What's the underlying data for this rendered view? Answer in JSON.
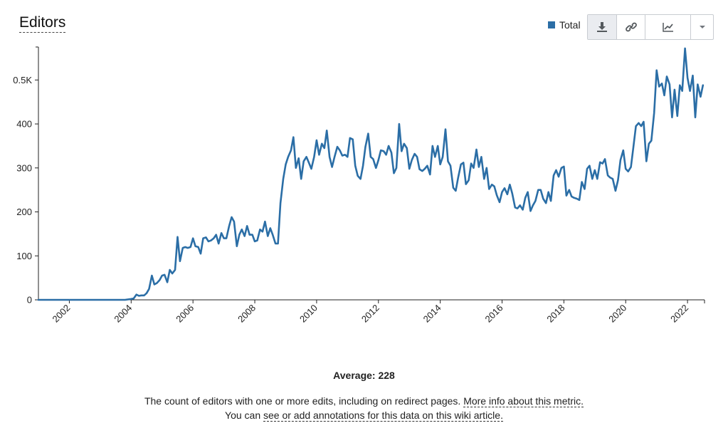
{
  "header": {
    "title": "Editors"
  },
  "legend": {
    "label": "Total",
    "color": "#2b6ea6"
  },
  "toolbar": {
    "download_icon": "download-icon",
    "link_icon": "link-icon",
    "chart_icon": "line-chart-icon",
    "more_icon": "chevron-down-icon"
  },
  "chart_data": {
    "type": "line",
    "title": "",
    "xlabel": "",
    "ylabel": "",
    "ylim": [
      0,
      575
    ],
    "x_range": [
      2001.0,
      2022.55
    ],
    "y_tick_labels": [
      {
        "value": 0,
        "label": "0"
      },
      {
        "value": 100,
        "label": "100"
      },
      {
        "value": 200,
        "label": "200"
      },
      {
        "value": 300,
        "label": "300"
      },
      {
        "value": 400,
        "label": "400"
      },
      {
        "value": 500,
        "label": "0.5K"
      }
    ],
    "x_tick_labels": [
      "2002",
      "2004",
      "2006",
      "2008",
      "2010",
      "2012",
      "2014",
      "2016",
      "2018",
      "2020",
      "2022"
    ],
    "grid": false,
    "legend_position": "top-right",
    "series": [
      {
        "name": "Total",
        "color": "#2b6ea6",
        "points": [
          [
            2001.0,
            0
          ],
          [
            2002.0,
            0
          ],
          [
            2003.0,
            0
          ],
          [
            2003.8,
            0
          ],
          [
            2004.0,
            2
          ],
          [
            2004.08,
            3
          ],
          [
            2004.17,
            12
          ],
          [
            2004.25,
            9
          ],
          [
            2004.33,
            10
          ],
          [
            2004.42,
            10
          ],
          [
            2004.5,
            15
          ],
          [
            2004.58,
            25
          ],
          [
            2004.67,
            55
          ],
          [
            2004.75,
            35
          ],
          [
            2004.83,
            38
          ],
          [
            2004.92,
            45
          ],
          [
            2005.0,
            55
          ],
          [
            2005.08,
            57
          ],
          [
            2005.17,
            40
          ],
          [
            2005.25,
            68
          ],
          [
            2005.33,
            60
          ],
          [
            2005.42,
            68
          ],
          [
            2005.5,
            143
          ],
          [
            2005.58,
            88
          ],
          [
            2005.67,
            118
          ],
          [
            2005.75,
            120
          ],
          [
            2005.83,
            118
          ],
          [
            2005.92,
            120
          ],
          [
            2006.0,
            140
          ],
          [
            2006.08,
            122
          ],
          [
            2006.17,
            120
          ],
          [
            2006.25,
            105
          ],
          [
            2006.33,
            140
          ],
          [
            2006.42,
            142
          ],
          [
            2006.5,
            133
          ],
          [
            2006.58,
            135
          ],
          [
            2006.67,
            140
          ],
          [
            2006.75,
            148
          ],
          [
            2006.83,
            128
          ],
          [
            2006.92,
            152
          ],
          [
            2007.0,
            140
          ],
          [
            2007.08,
            140
          ],
          [
            2007.17,
            168
          ],
          [
            2007.25,
            188
          ],
          [
            2007.33,
            178
          ],
          [
            2007.42,
            122
          ],
          [
            2007.5,
            148
          ],
          [
            2007.58,
            160
          ],
          [
            2007.67,
            145
          ],
          [
            2007.75,
            168
          ],
          [
            2007.83,
            148
          ],
          [
            2007.92,
            148
          ],
          [
            2008.0,
            133
          ],
          [
            2008.08,
            135
          ],
          [
            2008.17,
            160
          ],
          [
            2008.25,
            155
          ],
          [
            2008.33,
            178
          ],
          [
            2008.42,
            145
          ],
          [
            2008.5,
            163
          ],
          [
            2008.58,
            148
          ],
          [
            2008.67,
            128
          ],
          [
            2008.75,
            128
          ],
          [
            2008.83,
            220
          ],
          [
            2008.92,
            275
          ],
          [
            2009.0,
            308
          ],
          [
            2009.08,
            325
          ],
          [
            2009.17,
            340
          ],
          [
            2009.25,
            370
          ],
          [
            2009.33,
            300
          ],
          [
            2009.42,
            322
          ],
          [
            2009.5,
            275
          ],
          [
            2009.58,
            315
          ],
          [
            2009.67,
            325
          ],
          [
            2009.75,
            312
          ],
          [
            2009.83,
            298
          ],
          [
            2009.92,
            325
          ],
          [
            2010.0,
            363
          ],
          [
            2010.08,
            330
          ],
          [
            2010.17,
            355
          ],
          [
            2010.25,
            345
          ],
          [
            2010.33,
            385
          ],
          [
            2010.42,
            325
          ],
          [
            2010.5,
            302
          ],
          [
            2010.58,
            325
          ],
          [
            2010.67,
            348
          ],
          [
            2010.75,
            340
          ],
          [
            2010.83,
            328
          ],
          [
            2010.92,
            330
          ],
          [
            2011.0,
            325
          ],
          [
            2011.08,
            368
          ],
          [
            2011.17,
            365
          ],
          [
            2011.25,
            305
          ],
          [
            2011.33,
            282
          ],
          [
            2011.42,
            275
          ],
          [
            2011.5,
            305
          ],
          [
            2011.58,
            348
          ],
          [
            2011.67,
            378
          ],
          [
            2011.75,
            325
          ],
          [
            2011.83,
            320
          ],
          [
            2011.92,
            300
          ],
          [
            2012.0,
            318
          ],
          [
            2012.08,
            340
          ],
          [
            2012.17,
            338
          ],
          [
            2012.25,
            330
          ],
          [
            2012.33,
            350
          ],
          [
            2012.42,
            335
          ],
          [
            2012.5,
            288
          ],
          [
            2012.58,
            300
          ],
          [
            2012.67,
            400
          ],
          [
            2012.75,
            338
          ],
          [
            2012.83,
            355
          ],
          [
            2012.92,
            345
          ],
          [
            2013.0,
            298
          ],
          [
            2013.08,
            318
          ],
          [
            2013.17,
            332
          ],
          [
            2013.25,
            325
          ],
          [
            2013.33,
            297
          ],
          [
            2013.42,
            293
          ],
          [
            2013.5,
            298
          ],
          [
            2013.58,
            305
          ],
          [
            2013.67,
            285
          ],
          [
            2013.75,
            350
          ],
          [
            2013.83,
            325
          ],
          [
            2013.92,
            350
          ],
          [
            2014.0,
            308
          ],
          [
            2014.08,
            325
          ],
          [
            2014.17,
            388
          ],
          [
            2014.25,
            315
          ],
          [
            2014.33,
            305
          ],
          [
            2014.42,
            255
          ],
          [
            2014.5,
            248
          ],
          [
            2014.58,
            278
          ],
          [
            2014.67,
            308
          ],
          [
            2014.75,
            312
          ],
          [
            2014.83,
            263
          ],
          [
            2014.92,
            272
          ],
          [
            2015.0,
            310
          ],
          [
            2015.08,
            300
          ],
          [
            2015.17,
            342
          ],
          [
            2015.25,
            302
          ],
          [
            2015.33,
            325
          ],
          [
            2015.42,
            275
          ],
          [
            2015.5,
            300
          ],
          [
            2015.58,
            252
          ],
          [
            2015.67,
            262
          ],
          [
            2015.75,
            258
          ],
          [
            2015.83,
            238
          ],
          [
            2015.92,
            222
          ],
          [
            2016.0,
            245
          ],
          [
            2016.08,
            254
          ],
          [
            2016.17,
            240
          ],
          [
            2016.25,
            262
          ],
          [
            2016.33,
            242
          ],
          [
            2016.42,
            210
          ],
          [
            2016.5,
            208
          ],
          [
            2016.58,
            215
          ],
          [
            2016.67,
            205
          ],
          [
            2016.75,
            232
          ],
          [
            2016.83,
            245
          ],
          [
            2016.92,
            202
          ],
          [
            2017.0,
            215
          ],
          [
            2017.08,
            225
          ],
          [
            2017.17,
            250
          ],
          [
            2017.25,
            250
          ],
          [
            2017.33,
            230
          ],
          [
            2017.42,
            220
          ],
          [
            2017.5,
            245
          ],
          [
            2017.58,
            225
          ],
          [
            2017.67,
            283
          ],
          [
            2017.75,
            295
          ],
          [
            2017.83,
            280
          ],
          [
            2017.92,
            300
          ],
          [
            2018.0,
            303
          ],
          [
            2018.08,
            237
          ],
          [
            2018.17,
            250
          ],
          [
            2018.25,
            235
          ],
          [
            2018.33,
            232
          ],
          [
            2018.42,
            230
          ],
          [
            2018.5,
            227
          ],
          [
            2018.58,
            268
          ],
          [
            2018.67,
            252
          ],
          [
            2018.75,
            298
          ],
          [
            2018.83,
            305
          ],
          [
            2018.92,
            275
          ],
          [
            2019.0,
            295
          ],
          [
            2019.08,
            275
          ],
          [
            2019.17,
            313
          ],
          [
            2019.25,
            310
          ],
          [
            2019.33,
            320
          ],
          [
            2019.42,
            283
          ],
          [
            2019.5,
            278
          ],
          [
            2019.58,
            275
          ],
          [
            2019.67,
            248
          ],
          [
            2019.75,
            272
          ],
          [
            2019.83,
            318
          ],
          [
            2019.92,
            340
          ],
          [
            2020.0,
            298
          ],
          [
            2020.08,
            292
          ],
          [
            2020.17,
            302
          ],
          [
            2020.25,
            348
          ],
          [
            2020.33,
            395
          ],
          [
            2020.42,
            402
          ],
          [
            2020.5,
            395
          ],
          [
            2020.58,
            405
          ],
          [
            2020.67,
            315
          ],
          [
            2020.75,
            355
          ],
          [
            2020.83,
            362
          ],
          [
            2020.92,
            425
          ],
          [
            2021.0,
            522
          ],
          [
            2021.08,
            485
          ],
          [
            2021.17,
            492
          ],
          [
            2021.25,
            465
          ],
          [
            2021.33,
            508
          ],
          [
            2021.42,
            490
          ],
          [
            2021.5,
            415
          ],
          [
            2021.58,
            478
          ],
          [
            2021.67,
            418
          ],
          [
            2021.75,
            488
          ],
          [
            2021.83,
            475
          ],
          [
            2021.92,
            572
          ],
          [
            2022.0,
            505
          ],
          [
            2022.08,
            475
          ],
          [
            2022.17,
            510
          ],
          [
            2022.25,
            415
          ],
          [
            2022.33,
            490
          ],
          [
            2022.42,
            462
          ],
          [
            2022.5,
            488
          ]
        ]
      }
    ]
  },
  "footer": {
    "average": "Average: 228",
    "description": "The count of editors with one or more edits, including on redirect pages.",
    "more_info_link": "More info about this metric.",
    "annotation_prefix": "You can",
    "annotation_link": "see or add annotations for this data on this wiki article."
  }
}
